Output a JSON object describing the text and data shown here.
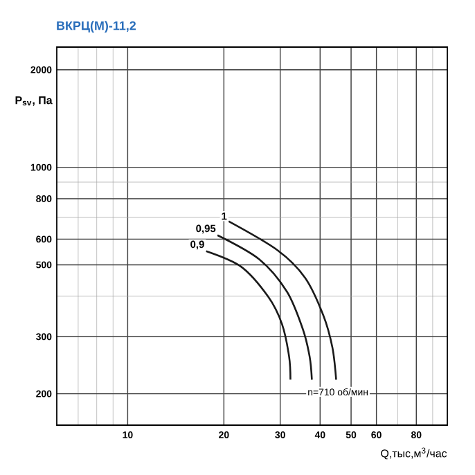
{
  "chart_data": {
    "type": "line",
    "title": "ВКРЦ(М)-11,2",
    "xlabel": "Q,тыс,м$^{3}$/час",
    "ylabel": "P$_{sv}$, Па",
    "log": "xy",
    "grid": true,
    "marker": "none",
    "line_style": "solid",
    "xlim": [
      6,
      100
    ],
    "ylim": [
      160,
      2350
    ],
    "xticks": [
      10,
      20,
      30,
      40,
      50,
      60,
      80
    ],
    "yticks": [
      200,
      300,
      500,
      600,
      800,
      1000,
      2000
    ],
    "annotations": [
      "n=710 об/мин"
    ],
    "series": [
      {
        "name": "1",
        "color": "#1a1a1a",
        "x": [
          20.7,
          29.4,
          35.9,
          40.9,
          43.7,
          44.9
        ],
        "values": [
          681,
          555,
          456,
          350,
          278,
          221
        ]
      },
      {
        "name": "0,95",
        "color": "#1a1a1a",
        "x": [
          19.1,
          25.8,
          31.5,
          35.3,
          37.1,
          37.7
        ],
        "values": [
          617,
          520,
          413,
          317,
          260,
          221
        ]
      },
      {
        "name": "0,9",
        "color": "#1a1a1a",
        "x": [
          17.6,
          22.6,
          27.5,
          30.4,
          32.0,
          32.3
        ],
        "values": [
          551,
          494,
          399,
          328,
          260,
          221
        ]
      }
    ]
  }
}
